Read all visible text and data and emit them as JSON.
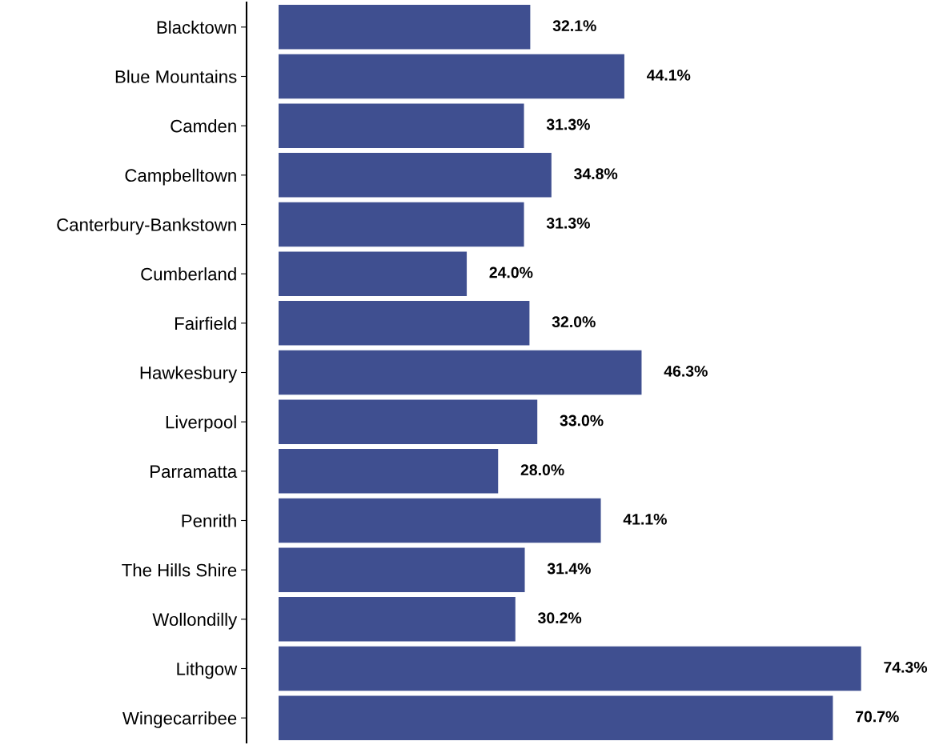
{
  "chart_data": {
    "type": "bar",
    "orientation": "horizontal",
    "categories": [
      "Blacktown",
      "Blue Mountains",
      "Camden",
      "Campbelltown",
      "Canterbury-Bankstown",
      "Cumberland",
      "Fairfield",
      "Hawkesbury",
      "Liverpool",
      "Parramatta",
      "Penrith",
      "The Hills Shire",
      "Wollondilly",
      "Lithgow",
      "Wingecarribee"
    ],
    "values": [
      32.1,
      44.1,
      31.3,
      34.8,
      31.3,
      24.0,
      32.0,
      46.3,
      33.0,
      28.0,
      41.1,
      31.4,
      30.2,
      74.3,
      70.7
    ],
    "value_labels": [
      "32.1%",
      "44.1%",
      "31.3%",
      "34.8%",
      "31.3%",
      "24.0%",
      "32.0%",
      "46.3%",
      "33.0%",
      "28.0%",
      "41.1%",
      "31.4%",
      "30.2%",
      "74.3%",
      "70.7%"
    ],
    "color": "#3f4f90",
    "grid": false,
    "legend": false,
    "tick_labels": "y"
  }
}
